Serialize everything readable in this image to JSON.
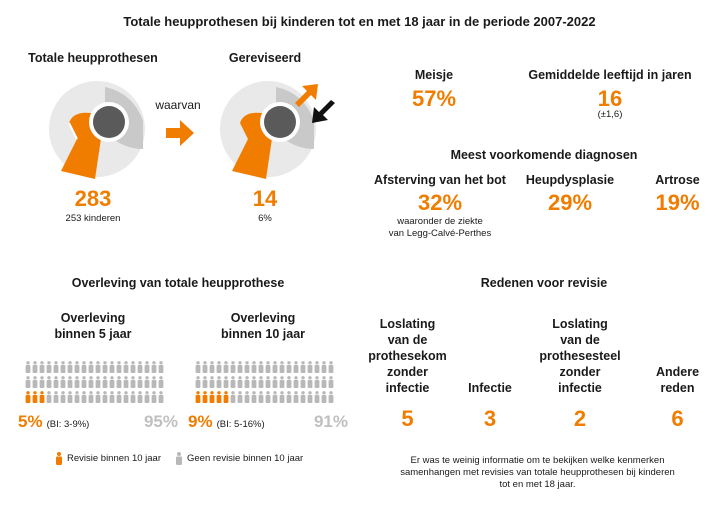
{
  "title": "Totale heupprothesen bij kinderen tot en met 18 jaar in de periode 2007-2022",
  "colors": {
    "accent": "#f07d00",
    "gray": "#c0c0c0",
    "dark": "#1a1a1a"
  },
  "total": {
    "label": "Totale heupprothesen",
    "value": "283",
    "sub": "253 kinderen"
  },
  "arrow_label": "waarvan",
  "revised": {
    "label": "Gereviseerd",
    "value": "14",
    "sub": "6%"
  },
  "girls": {
    "label": "Meisje",
    "value": "57%"
  },
  "age": {
    "label": "Gemiddelde leeftijd in jaren",
    "value": "16",
    "sub": "(±1,6)"
  },
  "diagnoses": {
    "title": "Meest voorkomende diagnosen",
    "items": [
      {
        "label": "Afsterving van het bot",
        "value": "32%",
        "note_line1": "waaronder de ziekte",
        "note_line2": "van Legg-Calvé-Perthes"
      },
      {
        "label": "Heupdysplasie",
        "value": "29%"
      },
      {
        "label": "Artrose",
        "value": "19%"
      }
    ]
  },
  "survival": {
    "title": "Overleving van totale heupprothese",
    "five": {
      "label_line1": "Overleving",
      "label_line2": "binnen 5 jaar",
      "revision_pct": "5%",
      "ci": "(BI: 3-9%)",
      "survival_pct": "95%",
      "revision_fraction": 0.05
    },
    "ten": {
      "label_line1": "Overleving",
      "label_line2": "binnen 10 jaar",
      "revision_pct": "9%",
      "ci": "(BI: 5-16%)",
      "survival_pct": "91%",
      "revision_fraction": 0.09
    },
    "legend_revision": "Revisie binnen 10 jaar",
    "legend_no_revision": "Geen revisie binnen 10 jaar"
  },
  "reasons": {
    "title": "Redenen voor revisie",
    "items": [
      {
        "lines": [
          "Loslating",
          "van de",
          "prothesekom",
          "zonder",
          "infectie"
        ],
        "value": "5"
      },
      {
        "lines": [
          "Infectie"
        ],
        "value": "3"
      },
      {
        "lines": [
          "Loslating",
          "van de",
          "prothesesteel",
          "zonder",
          "infectie"
        ],
        "value": "2"
      },
      {
        "lines": [
          "Andere",
          "reden"
        ],
        "value": "6"
      }
    ]
  },
  "footnote_line1": "Er was te weinig informatie om te bekijken welke kenmerken",
  "footnote_line2": "samenhangen met revisies van totale heupprothesen bij kinderen",
  "footnote_line3": "tot en met 18 jaar."
}
